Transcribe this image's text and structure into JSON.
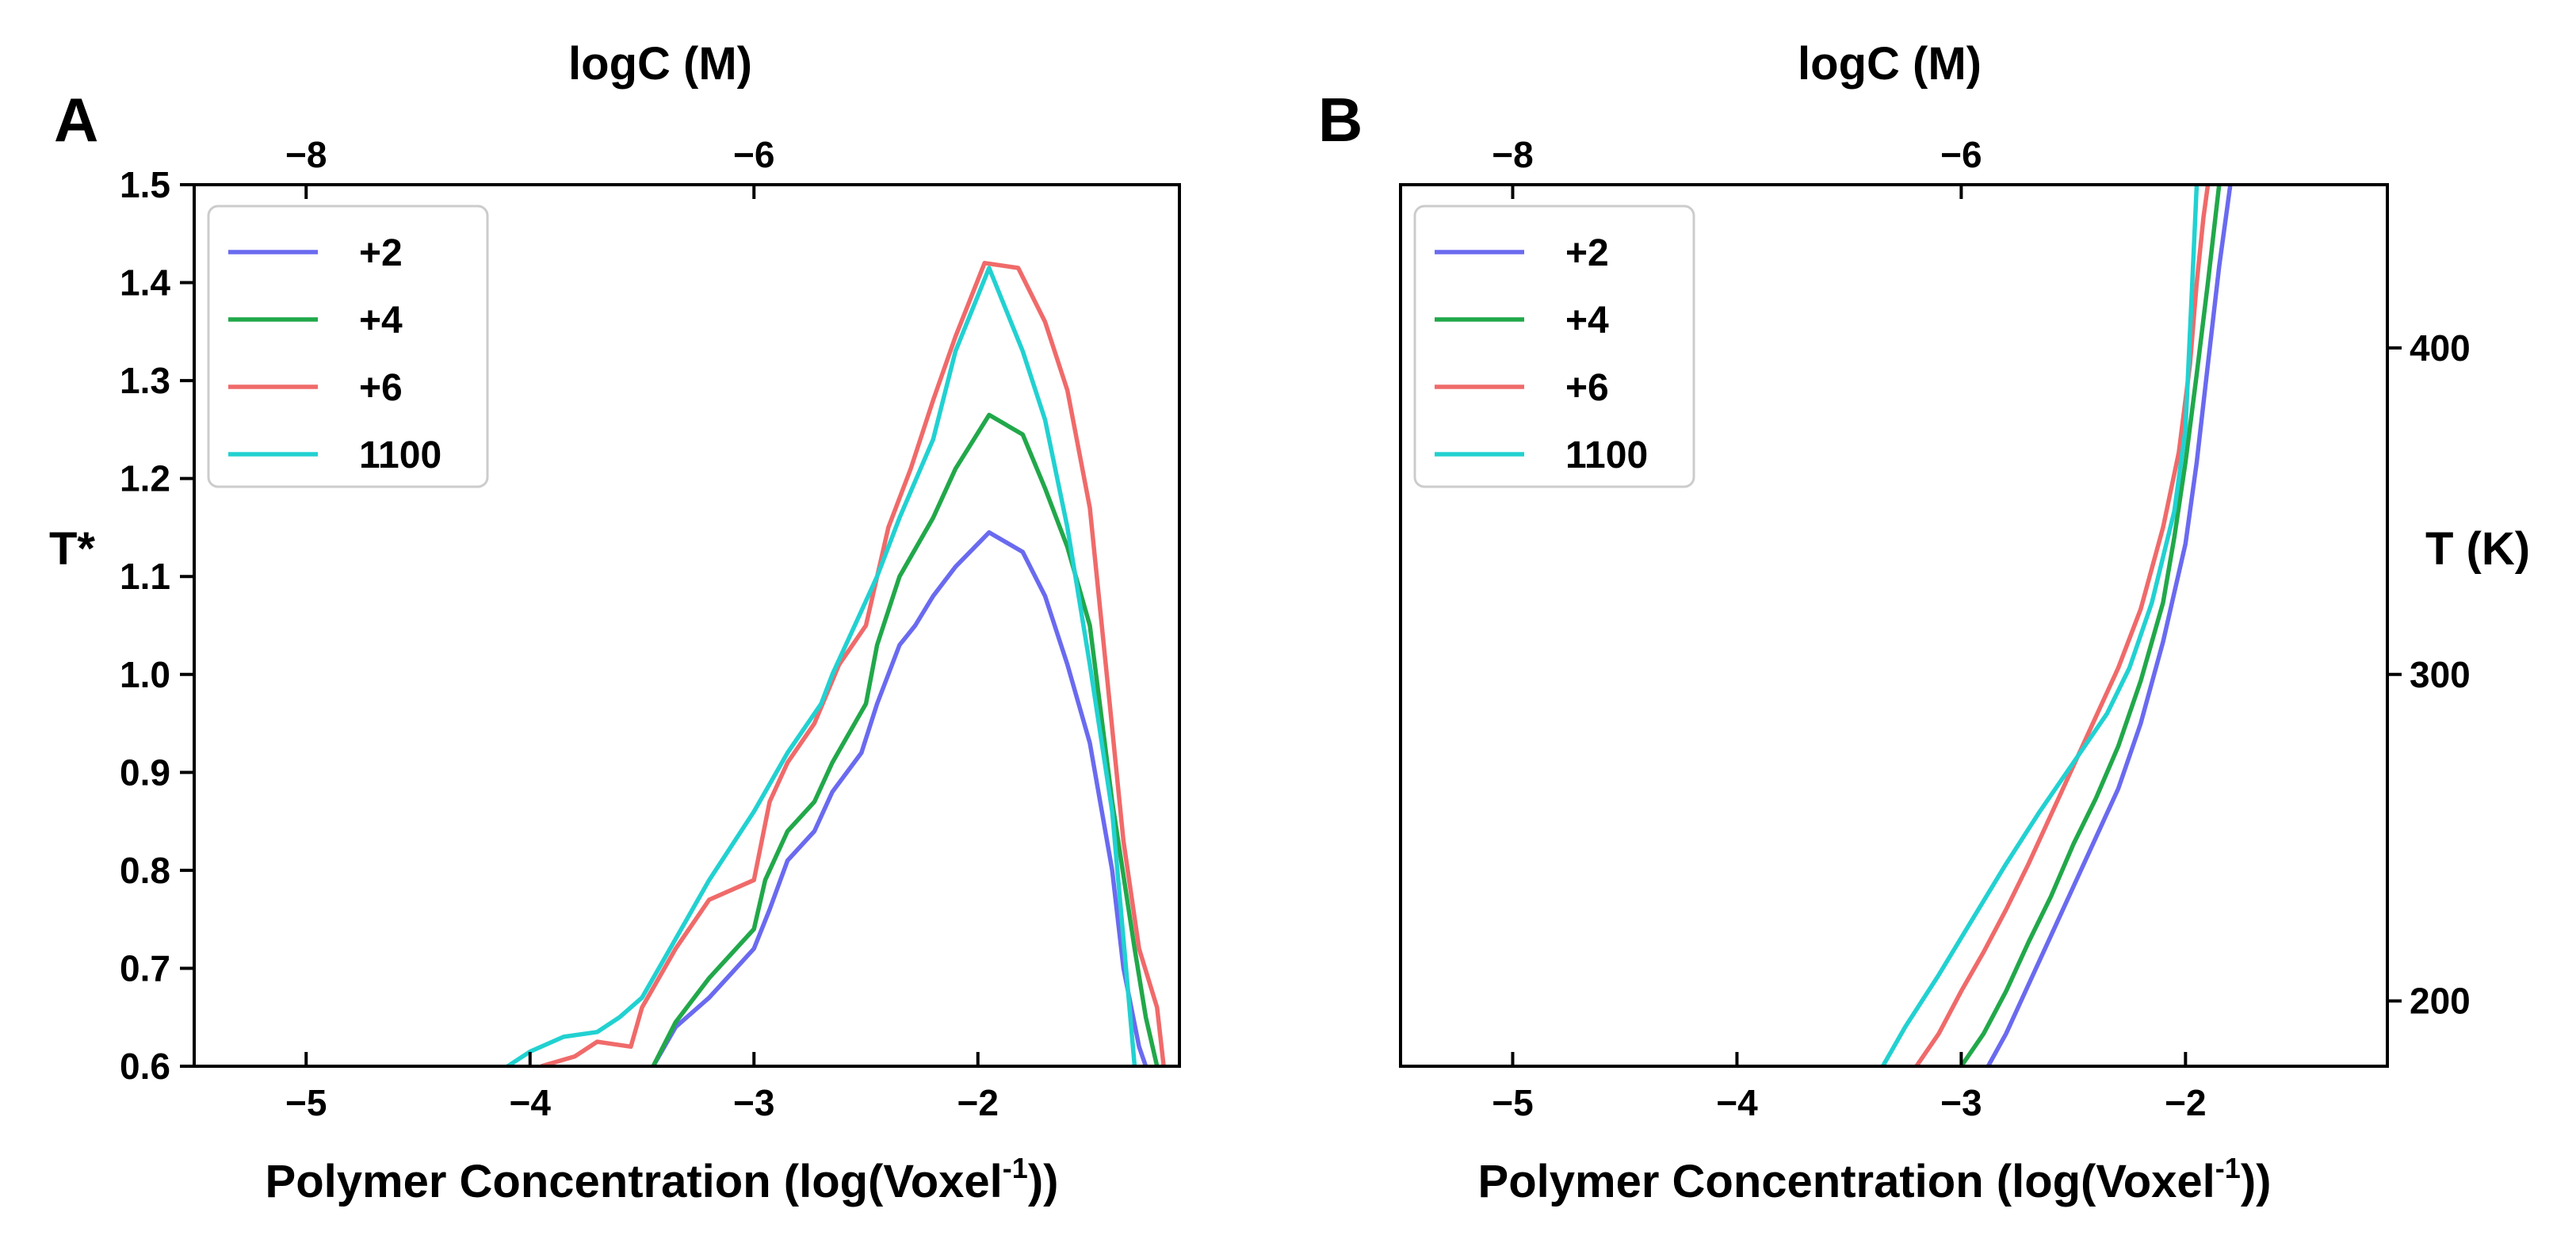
{
  "chart_data": [
    {
      "panel_label": "A",
      "type": "line",
      "title": "",
      "xlabel": "Polymer Concentration (log(Voxel",
      "xlabel_sup": "-1",
      "xlabel_suffix": "))",
      "ylabel": "T*",
      "top_xlabel": "logC (M)",
      "xlim": [
        -5.5,
        -1.1
      ],
      "ylim": [
        0.6,
        1.5
      ],
      "xticks": [
        -5,
        -4,
        -3,
        -2
      ],
      "xtick_labels": [
        "−5",
        "−4",
        "−3",
        "−2"
      ],
      "yticks": [
        0.6,
        0.7,
        0.8,
        0.9,
        1.0,
        1.1,
        1.2,
        1.3,
        1.4,
        1.5
      ],
      "ytick_labels": [
        "0.6",
        "0.7",
        "0.8",
        "0.9",
        "1.0",
        "1.1",
        "1.2",
        "1.3",
        "1.4",
        "1.5"
      ],
      "top_xticks": [
        -5.0,
        -3.0
      ],
      "top_xtick_labels": [
        "−8",
        "−6"
      ],
      "legend_position": "top-left",
      "series": [
        {
          "name": "+2",
          "color": "#6a6af0",
          "x": [
            -3.45,
            -3.35,
            -3.2,
            -3.1,
            -3.0,
            -2.93,
            -2.85,
            -2.73,
            -2.65,
            -2.52,
            -2.45,
            -2.35,
            -2.28,
            -2.2,
            -2.1,
            -1.95,
            -1.8,
            -1.7,
            -1.6,
            -1.5,
            -1.4,
            -1.35,
            -1.28,
            -1.25
          ],
          "y": [
            0.6,
            0.64,
            0.67,
            0.695,
            0.72,
            0.76,
            0.81,
            0.84,
            0.88,
            0.92,
            0.97,
            1.03,
            1.05,
            1.08,
            1.11,
            1.145,
            1.125,
            1.08,
            1.01,
            0.93,
            0.8,
            0.7,
            0.62,
            0.6
          ]
        },
        {
          "name": "+4",
          "color": "#21a84a",
          "x": [
            -3.45,
            -3.35,
            -3.2,
            -3.1,
            -3.0,
            -2.95,
            -2.85,
            -2.73,
            -2.65,
            -2.5,
            -2.45,
            -2.35,
            -2.2,
            -2.1,
            -1.95,
            -1.8,
            -1.7,
            -1.6,
            -1.5,
            -1.4,
            -1.3,
            -1.25,
            -1.2
          ],
          "y": [
            0.6,
            0.645,
            0.69,
            0.715,
            0.74,
            0.79,
            0.84,
            0.87,
            0.91,
            0.97,
            1.03,
            1.1,
            1.16,
            1.21,
            1.265,
            1.245,
            1.19,
            1.13,
            1.05,
            0.87,
            0.72,
            0.65,
            0.6
          ]
        },
        {
          "name": "+6",
          "color": "#f06a6a",
          "x": [
            -3.95,
            -3.8,
            -3.7,
            -3.55,
            -3.5,
            -3.45,
            -3.35,
            -3.2,
            -3.0,
            -2.93,
            -2.85,
            -2.73,
            -2.62,
            -2.5,
            -2.4,
            -2.3,
            -2.2,
            -2.1,
            -1.97,
            -1.82,
            -1.7,
            -1.6,
            -1.5,
            -1.42,
            -1.35,
            -1.28,
            -1.2,
            -1.17
          ],
          "y": [
            0.6,
            0.61,
            0.625,
            0.62,
            0.66,
            0.68,
            0.72,
            0.77,
            0.79,
            0.87,
            0.91,
            0.95,
            1.01,
            1.05,
            1.15,
            1.21,
            1.28,
            1.345,
            1.42,
            1.415,
            1.36,
            1.29,
            1.17,
            0.99,
            0.83,
            0.72,
            0.66,
            0.6
          ]
        },
        {
          "name": "1100",
          "color": "#22d1d1",
          "x": [
            -4.1,
            -4.0,
            -3.85,
            -3.7,
            -3.6,
            -3.5,
            -3.4,
            -3.3,
            -3.2,
            -3.0,
            -2.95,
            -2.85,
            -2.7,
            -2.65,
            -2.55,
            -2.45,
            -2.35,
            -2.2,
            -2.1,
            -1.95,
            -1.8,
            -1.7,
            -1.6,
            -1.5,
            -1.4,
            -1.35,
            -1.3
          ],
          "y": [
            0.6,
            0.615,
            0.63,
            0.635,
            0.65,
            0.67,
            0.71,
            0.75,
            0.79,
            0.86,
            0.88,
            0.92,
            0.97,
            1.0,
            1.05,
            1.1,
            1.16,
            1.24,
            1.33,
            1.415,
            1.33,
            1.26,
            1.15,
            1.01,
            0.86,
            0.73,
            0.6
          ]
        }
      ]
    },
    {
      "panel_label": "B",
      "type": "line",
      "title": "",
      "xlabel": "Polymer Concentration (log(Voxel",
      "xlabel_sup": "-1",
      "xlabel_suffix": "))",
      "ylabel": "T (K)",
      "top_xlabel": "logC (M)",
      "xlim": [
        -5.5,
        -1.1
      ],
      "ylim": [
        180,
        450
      ],
      "xticks": [
        -5,
        -4,
        -3,
        -2
      ],
      "xtick_labels": [
        "−5",
        "−4",
        "−3",
        "−2"
      ],
      "yticks": [
        200,
        300,
        400
      ],
      "ytick_labels": [
        "200",
        "300",
        "400"
      ],
      "y_axis_side": "right",
      "top_xticks": [
        -5.0,
        -3.0
      ],
      "top_xtick_labels": [
        "−8",
        "−6"
      ],
      "legend_position": "top-left",
      "series": [
        {
          "name": "+2",
          "color": "#6a6af0",
          "x": [
            -2.88,
            -2.8,
            -2.7,
            -2.6,
            -2.5,
            -2.4,
            -2.3,
            -2.2,
            -2.1,
            -2.0,
            -1.95,
            -1.9,
            -1.85,
            -1.82,
            -1.8
          ],
          "y": [
            180,
            190,
            205,
            220,
            235,
            250,
            265,
            285,
            310,
            340,
            365,
            395,
            425,
            440,
            450
          ]
        },
        {
          "name": "+4",
          "color": "#21a84a",
          "x": [
            -3.0,
            -2.9,
            -2.8,
            -2.7,
            -2.6,
            -2.5,
            -2.4,
            -2.3,
            -2.2,
            -2.1,
            -2.05,
            -2.0,
            -1.95,
            -1.9,
            -1.87,
            -1.85
          ],
          "y": [
            180,
            190,
            203,
            218,
            232,
            248,
            262,
            278,
            298,
            322,
            342,
            365,
            392,
            420,
            438,
            450
          ]
        },
        {
          "name": "+6",
          "color": "#f06a6a",
          "x": [
            -3.2,
            -3.1,
            -3.0,
            -2.9,
            -2.8,
            -2.7,
            -2.6,
            -2.5,
            -2.4,
            -2.3,
            -2.2,
            -2.1,
            -2.03,
            -1.98,
            -1.95,
            -1.92,
            -1.9
          ],
          "y": [
            180,
            190,
            203,
            215,
            228,
            242,
            257,
            272,
            287,
            302,
            320,
            345,
            368,
            395,
            420,
            440,
            450
          ]
        },
        {
          "name": "1100",
          "color": "#22d1d1",
          "x": [
            -3.35,
            -3.25,
            -3.1,
            -2.95,
            -2.8,
            -2.65,
            -2.5,
            -2.35,
            -2.25,
            -2.15,
            -2.05,
            -2.0,
            -1.98,
            -1.96,
            -1.95
          ],
          "y": [
            180,
            192,
            208,
            225,
            242,
            258,
            273,
            288,
            302,
            322,
            350,
            375,
            405,
            435,
            450
          ]
        }
      ]
    }
  ],
  "legend_markers": [
    {
      "name": "+2",
      "color": "#6a6af0"
    },
    {
      "name": "+4",
      "color": "#21a84a"
    },
    {
      "name": "+6",
      "color": "#f06a6a"
    },
    {
      "name": "1100",
      "color": "#22d1d1"
    }
  ]
}
